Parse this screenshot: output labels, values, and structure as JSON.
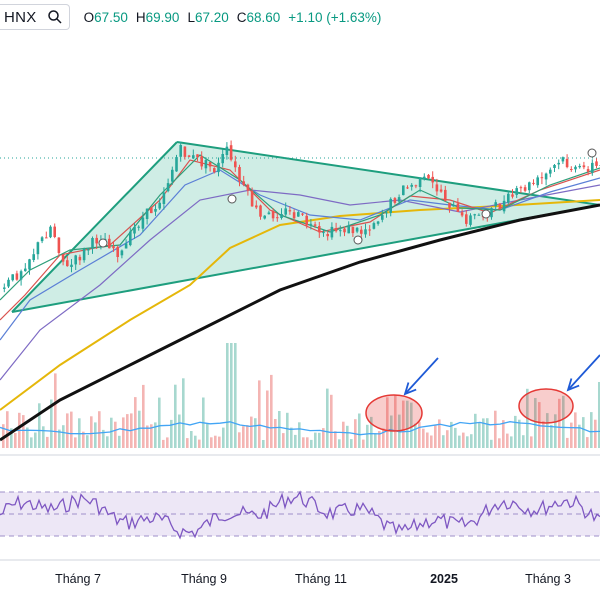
{
  "header": {
    "symbol": "HNX",
    "open_label": "O",
    "open": "67.50",
    "high_label": "H",
    "high": "69.90",
    "low_label": "L",
    "low": "67.20",
    "close_label": "C",
    "close": "68.60",
    "change": "+1.10 (+1.63%)",
    "search_icon": "search-icon"
  },
  "colors": {
    "up": "#26a69a",
    "down": "#ef5350",
    "triangle": "#1e9e7e",
    "triangle_fill": "#a8dfd0",
    "ma_black": "#111111",
    "ma_yellow": "#e5b70a",
    "ma_purple": "#7e6bc4",
    "ma_red": "#d9534f",
    "ma_blue": "#5b7fd6",
    "ma_green": "#2e9e7a",
    "volume_ma": "#42a5f5",
    "rsi_line": "#7e57c2",
    "rsi_band": "#ede7f6",
    "highlight": "#e53935",
    "arrow": "#1e5ad6"
  },
  "chart_data": {
    "type": "candlestick",
    "x_axis_labels": [
      "Tháng 7",
      "Tháng 9",
      "Tháng 11",
      "2025",
      "Tháng 3"
    ],
    "ohlc_last": {
      "open": 67.5,
      "high": 69.9,
      "low": 67.2,
      "close": 68.6,
      "change": 1.1,
      "change_pct": 1.63
    },
    "series": [
      {
        "name": "price",
        "kind": "candlestick",
        "shape": "triangle-consolidation"
      },
      {
        "name": "ma-black",
        "kind": "line"
      },
      {
        "name": "ma-yellow",
        "kind": "line"
      },
      {
        "name": "volume",
        "kind": "bar"
      },
      {
        "name": "volume-ma",
        "kind": "line"
      },
      {
        "name": "rsi",
        "kind": "line"
      }
    ],
    "annotations": [
      "symmetrical-triangle",
      "volume-highlight-ellipse",
      "volume-highlight-ellipse",
      "arrow",
      "arrow"
    ],
    "grid": false
  }
}
